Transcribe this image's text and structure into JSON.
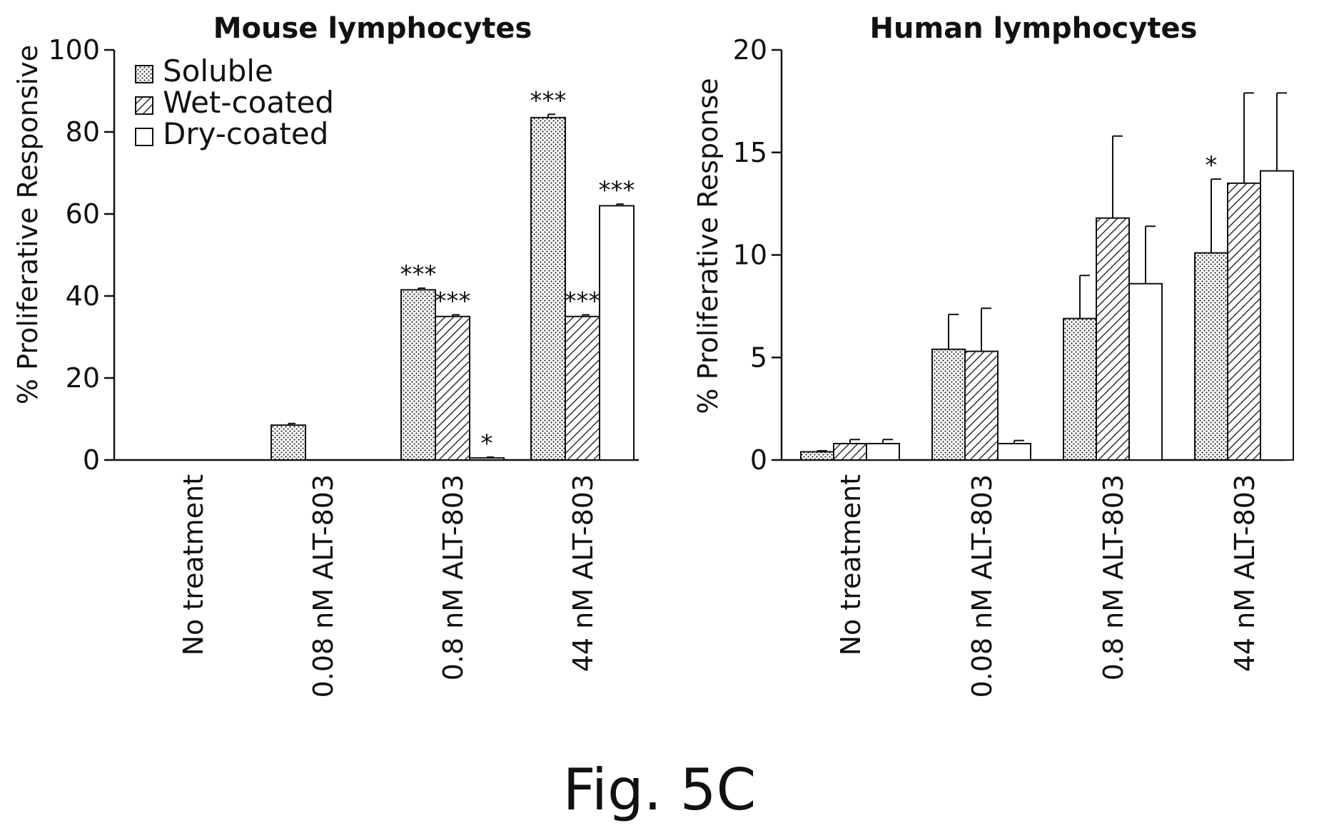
{
  "figure_label": "Fig. 5C",
  "legend": [
    {
      "name": "Soluble",
      "pattern": "dots"
    },
    {
      "name": "Wet-coated",
      "pattern": "hatch"
    },
    {
      "name": "Dry-coated",
      "pattern": "open"
    }
  ],
  "chart_data": [
    {
      "type": "bar",
      "title": "Mouse lymphocytes",
      "ylabel": "% Proliferative Responsive",
      "xlabel": "",
      "ylim": [
        0,
        100
      ],
      "yticks": [
        0,
        20,
        40,
        60,
        80,
        100
      ],
      "categories": [
        "No treatment",
        "0.08 nM ALT-803",
        "0.8 nM ALT-803",
        "44 nM ALT-803"
      ],
      "series": [
        {
          "name": "Soluble",
          "values": [
            0,
            8.5,
            41.5,
            83.5
          ],
          "errors": [
            0,
            0.4,
            0.4,
            0.8
          ],
          "sig": [
            "",
            "",
            "***",
            "***"
          ]
        },
        {
          "name": "Wet-coated",
          "values": [
            0,
            0,
            35,
            35
          ],
          "errors": [
            0,
            0,
            0.4,
            0.4
          ],
          "sig": [
            "",
            "",
            "***",
            "***"
          ]
        },
        {
          "name": "Dry-coated",
          "values": [
            0,
            0,
            0.5,
            62
          ],
          "errors": [
            0,
            0,
            0.2,
            0.4
          ],
          "sig": [
            "",
            "",
            "*",
            "***"
          ]
        }
      ],
      "legend_position": "top-left",
      "grid": false
    },
    {
      "type": "bar",
      "title": "Human lymphocytes",
      "ylabel": "% Proliferative Response",
      "xlabel": "",
      "ylim": [
        0,
        20
      ],
      "yticks": [
        0,
        5,
        10,
        15,
        20
      ],
      "categories": [
        "No treatment",
        "0.08 nM ALT-803",
        "0.8 nM ALT-803",
        "44 nM ALT-803"
      ],
      "series": [
        {
          "name": "Soluble",
          "values": [
            0.4,
            5.4,
            6.9,
            10.1
          ],
          "errors": [
            0.05,
            1.7,
            2.1,
            3.6
          ],
          "sig": [
            "",
            "",
            "",
            "*"
          ]
        },
        {
          "name": "Wet-coated",
          "values": [
            0.8,
            5.3,
            11.8,
            13.5
          ],
          "errors": [
            0.2,
            2.1,
            4.0,
            4.4
          ],
          "sig": [
            "",
            "",
            "",
            ""
          ]
        },
        {
          "name": "Dry-coated",
          "values": [
            0.8,
            0.8,
            8.6,
            14.1
          ],
          "errors": [
            0.2,
            0.15,
            2.8,
            3.8
          ],
          "sig": [
            "",
            "",
            "",
            ""
          ]
        }
      ],
      "grid": false
    }
  ]
}
